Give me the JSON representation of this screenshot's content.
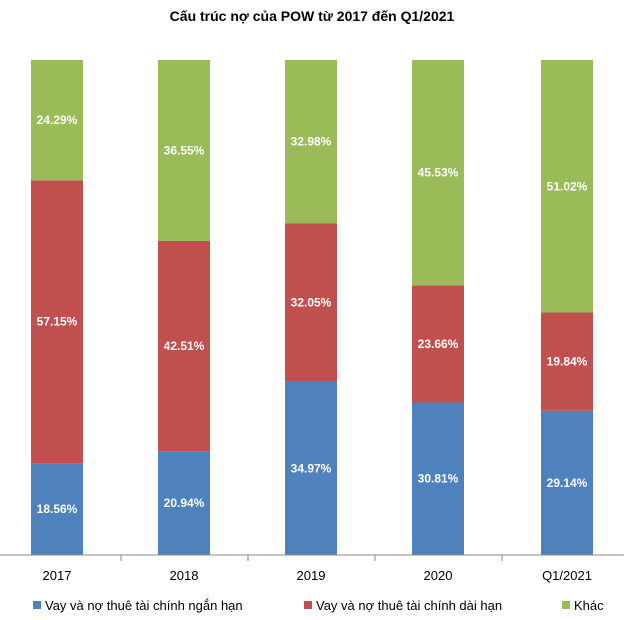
{
  "chart_data": {
    "type": "bar",
    "stacked": true,
    "percent_stacked": true,
    "title": "Cấu trúc nợ của POW từ 2017 đến Q1/2021",
    "categories": [
      "2017",
      "2018",
      "2019",
      "2020",
      "Q1/2021"
    ],
    "series": [
      {
        "name": "Vay và nợ thuê tài chính ngắn hạn",
        "color": "#4F81BD",
        "values": [
          18.56,
          20.94,
          34.97,
          30.81,
          29.14
        ]
      },
      {
        "name": "Vay và nợ thuê tài chính dài hạn",
        "color": "#C0504D",
        "values": [
          57.15,
          42.51,
          32.05,
          23.66,
          19.84
        ]
      },
      {
        "name": "Khác",
        "color": "#9BBB59",
        "values": [
          24.29,
          36.55,
          32.98,
          45.53,
          51.02
        ]
      }
    ],
    "data_label_suffix": "%",
    "ylim": [
      0,
      100
    ],
    "grid": false,
    "legend_position": "bottom"
  }
}
